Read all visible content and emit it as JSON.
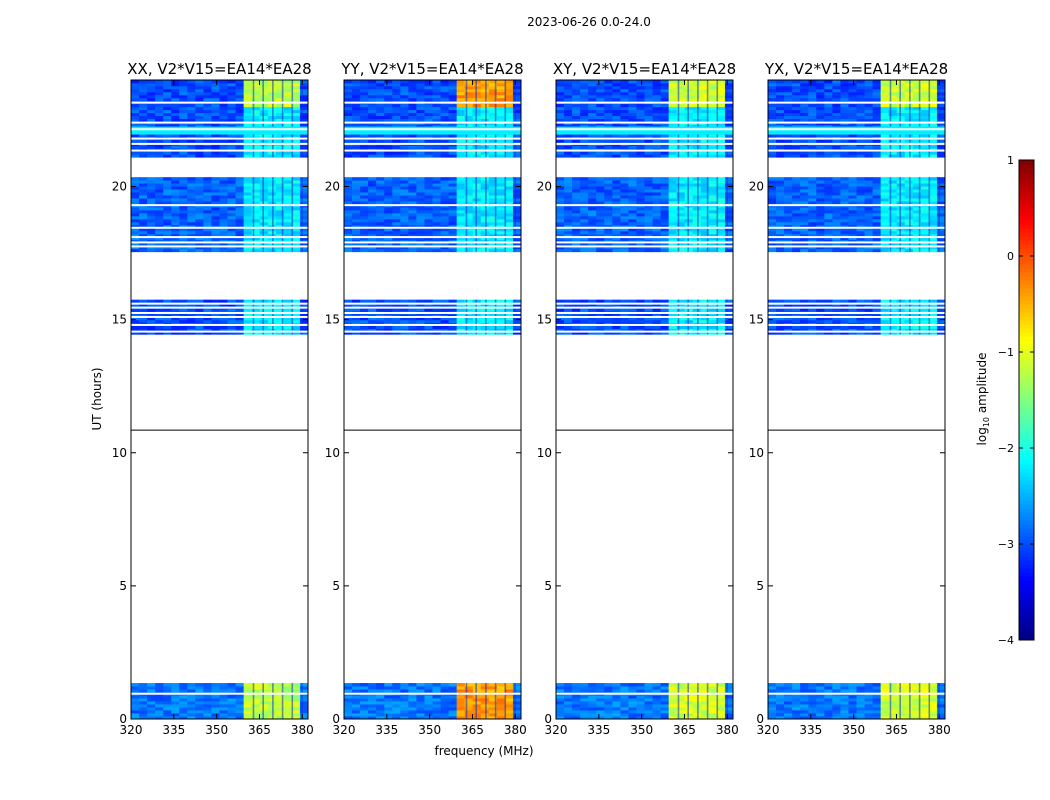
{
  "suptitle": "2023-06-26 0.0-24.0",
  "colorbar": {
    "label_prefix": "log",
    "label_sub": "10",
    "label_suffix": " amplitude",
    "range": [
      -4,
      1
    ],
    "ticks": [
      1,
      0,
      -1,
      -2,
      -3,
      -4
    ],
    "tick_labels": [
      "1",
      "0",
      "−1",
      "−2",
      "−3",
      "−4"
    ],
    "colormap": "jet"
  },
  "chart_data": {
    "type": "heatmap",
    "title": "2023-06-26 0.0-24.0",
    "xlabel": "frequency (MHz)",
    "ylabel": "UT (hours)",
    "xlim": [
      320,
      382
    ],
    "ylim": [
      0,
      24
    ],
    "xticks": [
      320,
      335,
      350,
      365,
      380
    ],
    "yticks": [
      0,
      5,
      10,
      15,
      20
    ],
    "colorscale": "log10 amplitude",
    "value_range": [
      -4,
      1
    ],
    "rfi_band_mhz": [
      359.5,
      380
    ],
    "panels": [
      {
        "name": "XX, V2*V15=EA14*EA28",
        "rfi_level": -1.2
      },
      {
        "name": "YY, V2*V15=EA14*EA28",
        "rfi_level": -0.4
      },
      {
        "name": "XY, V2*V15=EA14*EA28",
        "rfi_level": -1.1
      },
      {
        "name": "YX, V2*V15=EA14*EA28",
        "rfi_level": -1.1
      }
    ],
    "data_blocks_ut": [
      {
        "start": 0.0,
        "end": 1.35,
        "background": -2.8
      },
      {
        "start": 14.45,
        "end": 15.75,
        "background": -3.0
      },
      {
        "start": 17.55,
        "end": 20.35,
        "background": -2.9
      },
      {
        "start": 21.1,
        "end": 24.0,
        "background": -3.0
      }
    ],
    "flagged_rows_ut": [
      0.95,
      14.55,
      14.8,
      15.1,
      15.25,
      15.45,
      15.6,
      17.75,
      17.9,
      18.1,
      18.45,
      19.3,
      21.35,
      21.6,
      21.8,
      22.15,
      22.4,
      23.15
    ],
    "bright_band_ut": {
      "start": 21.95,
      "end": 22.25,
      "level": -2.2
    },
    "horizontal_marker_ut": 10.85
  }
}
